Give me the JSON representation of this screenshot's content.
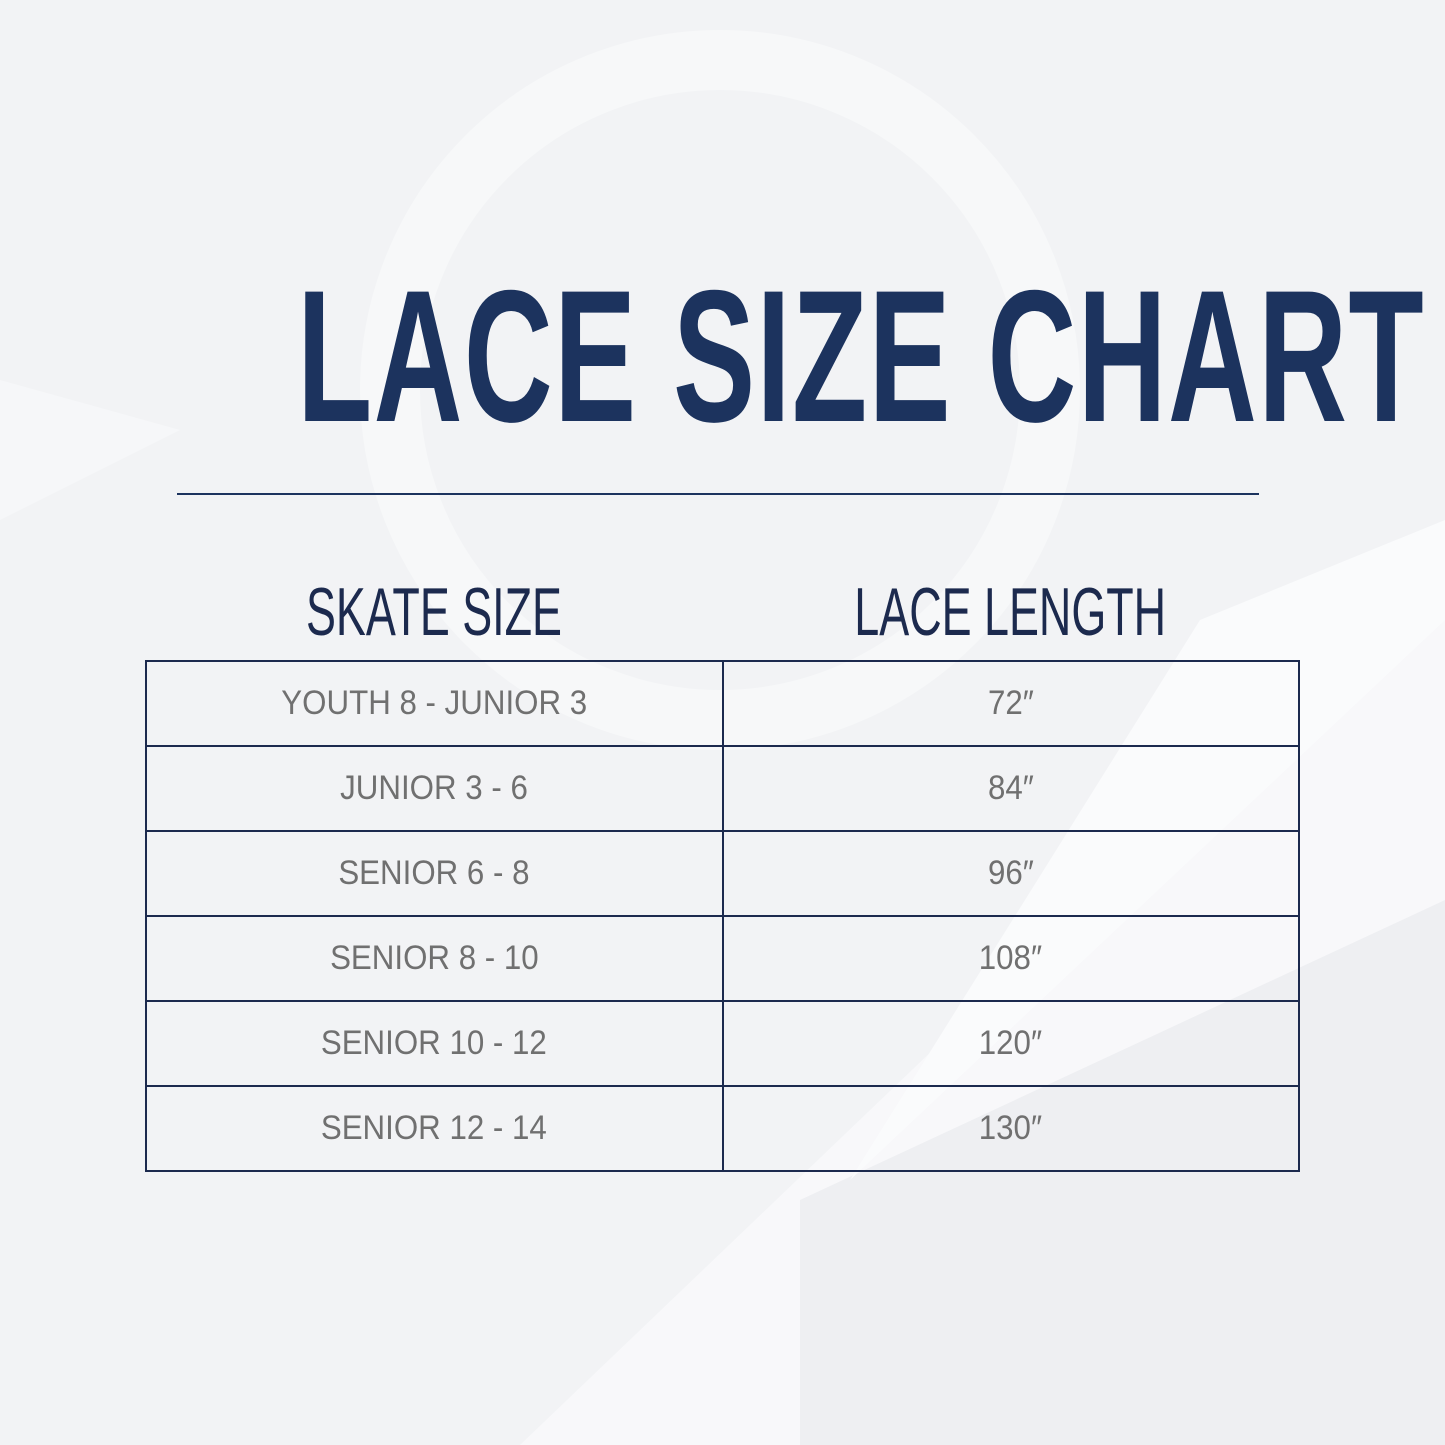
{
  "title": "LACE SIZE CHART",
  "headers": {
    "skate_size": "SKATE SIZE",
    "lace_length": "LACE LENGTH"
  },
  "rows": [
    {
      "skate_size": "YOUTH 8 - JUNIOR 3",
      "lace_length": "72″"
    },
    {
      "skate_size": "JUNIOR 3 - 6",
      "lace_length": "84″"
    },
    {
      "skate_size": "SENIOR 6 - 8",
      "lace_length": "96″"
    },
    {
      "skate_size": "SENIOR 8 - 10",
      "lace_length": "108″"
    },
    {
      "skate_size": "SENIOR 10 - 12",
      "lace_length": "120″"
    },
    {
      "skate_size": "SENIOR 12 - 14",
      "lace_length": "130″"
    }
  ],
  "colors": {
    "navy": "#1c335e",
    "cell_text": "#707070",
    "background": "#f2f3f5"
  }
}
